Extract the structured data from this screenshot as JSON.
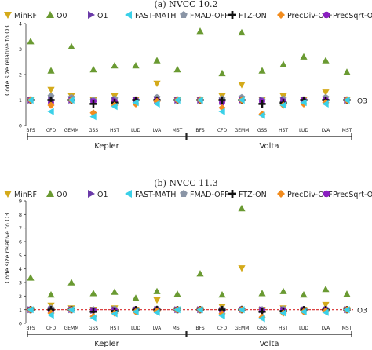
{
  "legend": [
    {
      "name": "MinRF",
      "color": "#d4aa1a",
      "marker": "triangle-down"
    },
    {
      "name": "O0",
      "color": "#6a9a32",
      "marker": "triangle-up"
    },
    {
      "name": "O1",
      "color": "#6a3aa8",
      "marker": "triangle-right"
    },
    {
      "name": "FAST-MATH",
      "color": "#3ad0e8",
      "marker": "triangle-left"
    },
    {
      "name": "FMAD-OFF",
      "color": "#8a95a6",
      "marker": "pentagon"
    },
    {
      "name": "FTZ-ON",
      "color": "#111111",
      "marker": "plus"
    },
    {
      "name": "PrecDiv-OFF",
      "color": "#f28c1e",
      "marker": "diamond"
    },
    {
      "name": "PrecSqrt-OFF",
      "color": "#8a1fc0",
      "marker": "circle"
    }
  ],
  "chart_data": [
    {
      "type": "scatter",
      "title": "(a) NVCC 10.2",
      "ylabel": "Code size relative to O3",
      "ylim": [
        0,
        4
      ],
      "yticks": [
        0,
        1,
        2,
        3,
        4
      ],
      "reference_line": {
        "y": 1,
        "label": "O3",
        "color": "#d62728",
        "style": "dashed"
      },
      "groups": [
        "Kepler",
        "Volta"
      ],
      "categories": [
        "BFS",
        "CFD",
        "GEMM",
        "GSS",
        "HST",
        "LUD",
        "LVA",
        "MST",
        "BFS",
        "CFD",
        "GEMM",
        "GSS",
        "HST",
        "LUD",
        "LVA",
        "MST"
      ],
      "series": [
        {
          "name": "MinRF",
          "values": [
            1.0,
            1.4,
            1.15,
            1.0,
            1.15,
            1.0,
            1.65,
            1.0,
            1.0,
            1.15,
            1.6,
            1.0,
            1.15,
            1.0,
            1.3,
            1.0
          ]
        },
        {
          "name": "O0",
          "values": [
            3.3,
            2.15,
            3.1,
            2.2,
            2.35,
            2.35,
            2.55,
            2.2,
            3.7,
            2.05,
            3.65,
            2.15,
            2.4,
            2.7,
            2.55,
            2.1
          ]
        },
        {
          "name": "O1",
          "values": [
            1.0,
            1.0,
            1.0,
            0.95,
            1.0,
            1.0,
            1.0,
            1.0,
            1.0,
            0.95,
            1.0,
            1.0,
            1.0,
            1.0,
            1.0,
            1.0
          ]
        },
        {
          "name": "FAST-MATH",
          "values": [
            1.0,
            0.55,
            1.0,
            0.35,
            0.75,
            0.9,
            0.85,
            1.0,
            1.0,
            0.55,
            1.0,
            0.4,
            0.8,
            0.9,
            0.85,
            1.0
          ]
        },
        {
          "name": "FMAD-OFF",
          "values": [
            1.0,
            1.15,
            1.1,
            1.0,
            1.05,
            1.0,
            1.1,
            1.0,
            1.0,
            1.05,
            1.1,
            1.0,
            1.05,
            1.0,
            1.1,
            1.0
          ]
        },
        {
          "name": "FTZ-ON",
          "values": [
            1.0,
            1.0,
            1.0,
            0.85,
            0.9,
            1.0,
            1.0,
            1.0,
            1.0,
            1.0,
            1.0,
            0.85,
            0.9,
            1.0,
            1.0,
            1.0
          ]
        },
        {
          "name": "PrecDiv-OFF",
          "values": [
            1.0,
            0.8,
            1.0,
            0.5,
            0.8,
            0.85,
            0.95,
            1.0,
            1.0,
            0.7,
            1.0,
            0.45,
            0.8,
            0.85,
            0.9,
            1.0
          ]
        },
        {
          "name": "PrecSqrt-OFF",
          "values": [
            1.0,
            0.9,
            1.0,
            0.95,
            0.95,
            1.0,
            1.0,
            1.0,
            1.0,
            0.9,
            1.0,
            0.95,
            0.95,
            1.0,
            1.0,
            1.0
          ]
        }
      ]
    },
    {
      "type": "scatter",
      "title": "(b) NVCC 11.3",
      "ylabel": "Code size relative to O3",
      "ylim": [
        0,
        9
      ],
      "yticks": [
        0,
        1,
        2,
        3,
        4,
        5,
        6,
        7,
        8,
        9
      ],
      "reference_line": {
        "y": 1,
        "label": "O3",
        "color": "#d62728",
        "style": "dashed"
      },
      "groups": [
        "Kepler",
        "Volta"
      ],
      "categories": [
        "BFS",
        "CFD",
        "GEMM",
        "GSS",
        "HST",
        "LUD",
        "LVA",
        "MST",
        "BFS",
        "CFD",
        "GEMM",
        "GSS",
        "HST",
        "LUD",
        "LVA",
        "MST"
      ],
      "series": [
        {
          "name": "MinRF",
          "values": [
            1.0,
            1.3,
            1.1,
            1.0,
            1.1,
            1.0,
            1.7,
            1.0,
            1.0,
            1.2,
            4.05,
            1.0,
            1.1,
            1.0,
            1.35,
            1.0
          ]
        },
        {
          "name": "O0",
          "values": [
            3.35,
            2.1,
            3.0,
            2.2,
            2.3,
            1.85,
            2.35,
            2.15,
            3.65,
            2.1,
            8.45,
            2.2,
            2.35,
            2.1,
            2.5,
            2.15
          ]
        },
        {
          "name": "O1",
          "values": [
            1.0,
            1.0,
            1.0,
            0.95,
            1.0,
            1.0,
            1.0,
            1.0,
            1.0,
            0.95,
            1.0,
            1.0,
            1.0,
            1.0,
            1.0,
            1.0
          ]
        },
        {
          "name": "FAST-MATH",
          "values": [
            1.0,
            0.6,
            1.0,
            0.4,
            0.7,
            0.85,
            0.8,
            1.0,
            1.0,
            0.55,
            1.0,
            0.35,
            0.75,
            0.85,
            0.8,
            1.0
          ]
        },
        {
          "name": "FMAD-OFF",
          "values": [
            1.0,
            1.1,
            1.05,
            1.0,
            1.05,
            1.0,
            1.05,
            1.0,
            1.0,
            1.05,
            1.05,
            1.0,
            1.05,
            1.0,
            1.05,
            1.0
          ]
        },
        {
          "name": "FTZ-ON",
          "values": [
            1.0,
            1.0,
            1.0,
            0.85,
            0.9,
            1.0,
            1.0,
            1.0,
            1.0,
            1.0,
            1.0,
            0.85,
            0.9,
            1.0,
            1.0,
            1.0
          ]
        },
        {
          "name": "PrecDiv-OFF",
          "values": [
            1.0,
            0.75,
            1.0,
            0.5,
            0.75,
            0.85,
            0.9,
            1.0,
            1.0,
            0.7,
            1.0,
            0.45,
            0.75,
            0.85,
            0.9,
            1.0
          ]
        },
        {
          "name": "PrecSqrt-OFF",
          "values": [
            1.0,
            0.9,
            1.0,
            0.95,
            0.95,
            1.0,
            1.0,
            1.0,
            1.0,
            0.9,
            1.0,
            0.95,
            0.95,
            1.0,
            1.0,
            1.0
          ]
        }
      ]
    }
  ]
}
